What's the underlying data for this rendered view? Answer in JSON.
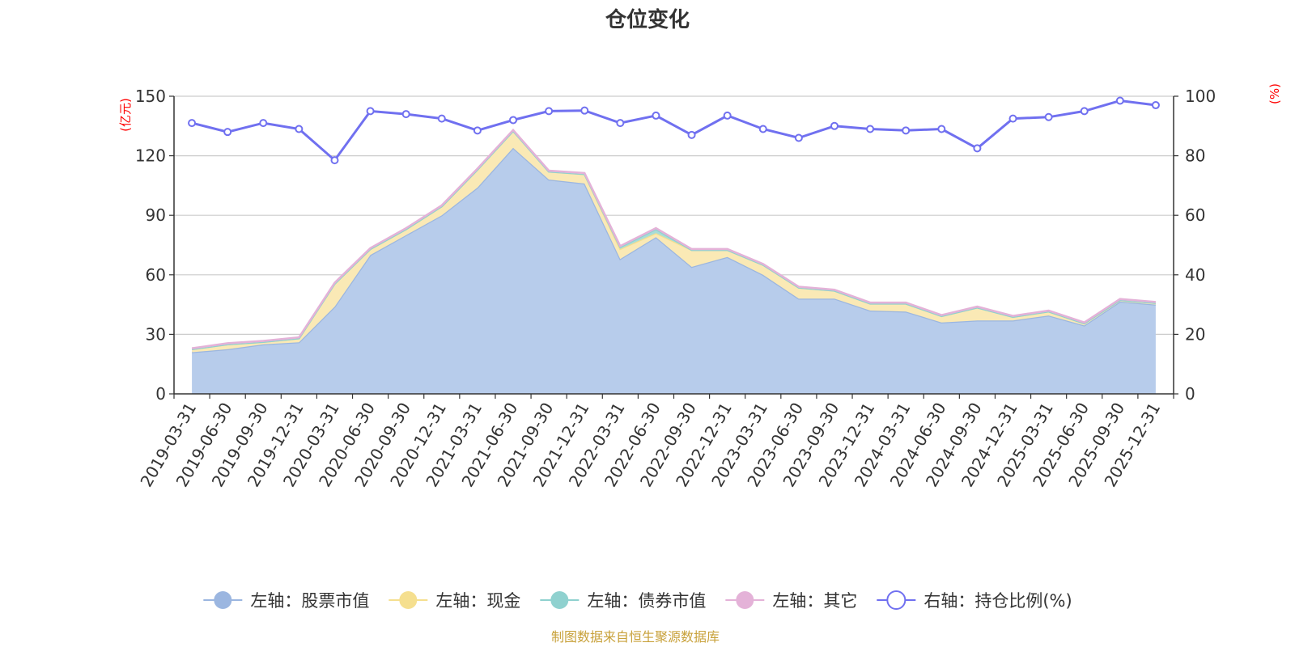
{
  "chart_data": {
    "type": "area",
    "title": "仓位变化",
    "source_note": "制图数据来自恒生聚源数据库",
    "left_axis": {
      "unit_label": "(亿元)",
      "min": 0,
      "max": 150,
      "ticks": [
        0,
        30,
        60,
        90,
        120,
        150
      ]
    },
    "right_axis": {
      "unit_label": "(%)",
      "min": 0,
      "max": 100,
      "ticks": [
        0,
        20,
        40,
        60,
        80,
        100
      ]
    },
    "categories": [
      "2019-03-31",
      "2019-06-30",
      "2019-09-30",
      "2019-12-31",
      "2020-03-31",
      "2020-06-30",
      "2020-09-30",
      "2020-12-31",
      "2021-03-31",
      "2021-06-30",
      "2021-09-30",
      "2021-12-31",
      "2022-03-31",
      "2022-06-30",
      "2022-09-30",
      "2022-12-31",
      "2023-03-31",
      "2023-06-30",
      "2023-09-30",
      "2023-12-31",
      "2024-03-31",
      "2024-06-30",
      "2024-09-30",
      "2024-12-31",
      "2025-03-31",
      "2025-06-30",
      "2025-09-30",
      "2025-12-31"
    ],
    "series": [
      {
        "name": "左轴：股票市值",
        "axis": "left",
        "kind": "stacked-area",
        "color": "#9bb6e0",
        "fill": "#b7cceb",
        "values": [
          21,
          22.5,
          25,
          26,
          44,
          70,
          80,
          90,
          104,
          124,
          108,
          106,
          68,
          79,
          64,
          69,
          60,
          48,
          48,
          42,
          41.5,
          36,
          37,
          37,
          39.5,
          34.5,
          46.5,
          45
        ]
      },
      {
        "name": "左轴：现金",
        "axis": "left",
        "kind": "stacked-area",
        "color": "#f5df8f",
        "fill": "#fae9b5",
        "values": [
          1.5,
          2.5,
          1.2,
          2,
          11.5,
          3,
          3,
          4.5,
          9,
          8.5,
          4,
          4.8,
          5,
          2,
          8.5,
          3.5,
          5,
          5.5,
          4,
          3.5,
          4,
          3.2,
          6.5,
          1.8,
          2,
          1,
          0.8,
          0.8
        ]
      },
      {
        "name": "左轴：债券市值",
        "axis": "left",
        "kind": "stacked-area",
        "color": "#8fd1cf",
        "fill": "#a8dcd8",
        "values": [
          0,
          0,
          0,
          0,
          0,
          0,
          0,
          0,
          0,
          0,
          0,
          0,
          1,
          2,
          0,
          0,
          0,
          0,
          0,
          0,
          0,
          0,
          0,
          0,
          0,
          0,
          0,
          0
        ]
      },
      {
        "name": "左轴：其它",
        "axis": "left",
        "kind": "stacked-area",
        "color": "#e4b2d8",
        "fill": "#eec6e4",
        "values": [
          0.5,
          0.5,
          0.5,
          0.5,
          0.5,
          0.5,
          0.5,
          0.5,
          0.5,
          0.5,
          0.5,
          0.5,
          0.5,
          0.5,
          0.5,
          0.5,
          0.5,
          0.5,
          0.5,
          0.5,
          0.5,
          0.5,
          0.5,
          0.5,
          0.5,
          0.5,
          0.5,
          0.5
        ]
      },
      {
        "name": "右轴：持仓比例(%)",
        "axis": "right",
        "kind": "line",
        "color": "#7070f0",
        "values": [
          91,
          88,
          91,
          89,
          78.5,
          95,
          94,
          92.5,
          88.5,
          92,
          95,
          95.2,
          91,
          93.5,
          87,
          93.5,
          89,
          86,
          90,
          89,
          88.5,
          89,
          82.5,
          92.5,
          93,
          95,
          98.5,
          97
        ]
      }
    ]
  }
}
